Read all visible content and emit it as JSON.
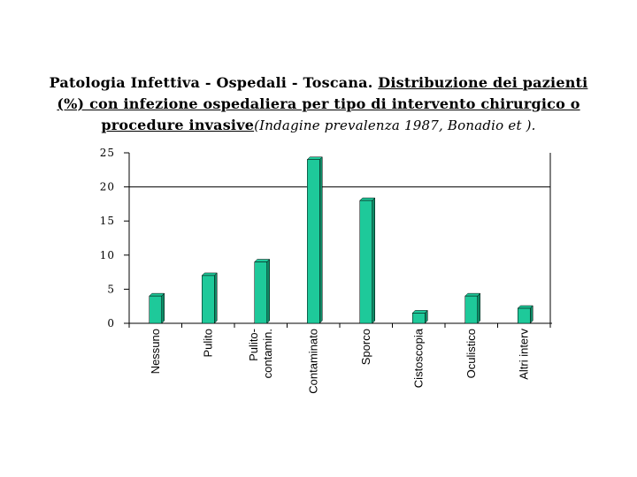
{
  "title": {
    "part1": "Patologia Infettiva - Ospedali - Toscana. ",
    "part2_underlined": "Distribuzione dei pazienti (%) con infezione ospedaliera per tipo di intervento chirurgico o procedure invasive",
    "citation": "(Indagine prevalenza 1987, Bonadio et ).",
    "line1_underlined": "Distribuzione dei pazienti",
    "line2": "(%) con infezione ospedaliera per tipo di intervento chirurgico o",
    "line3": "procedure invasive"
  },
  "colors": {
    "bar": "#1ec99a",
    "bar_side": "#0f8a66",
    "axis": "#000000"
  },
  "chart_data": {
    "type": "bar",
    "categories": [
      "Nessuno",
      "Pulito",
      "Pulito-contamin.",
      "Contaminato",
      "Sporco",
      "Cistoscopia",
      "Oculistico",
      "Altri interv"
    ],
    "category_lines": [
      [
        "Nessuno"
      ],
      [
        "Pulito"
      ],
      [
        "Pulito-",
        "contamin."
      ],
      [
        "Contaminato"
      ],
      [
        "Sporco"
      ],
      [
        "Cistoscopia"
      ],
      [
        "Oculistico"
      ],
      [
        "Altri interv"
      ]
    ],
    "values": [
      4,
      7,
      9,
      24,
      18,
      1.5,
      4,
      2.2
    ],
    "yticks": [
      "0",
      "5",
      "10",
      "15",
      "20",
      "25"
    ],
    "ylim": [
      0,
      25
    ],
    "grid": false,
    "reference_line": 20
  }
}
